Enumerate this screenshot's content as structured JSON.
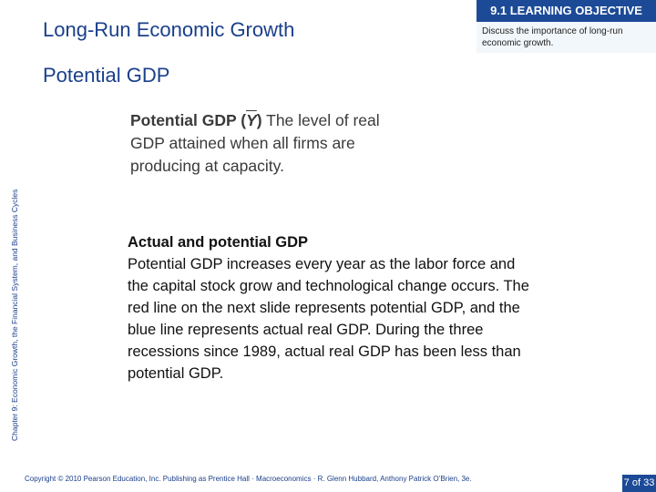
{
  "header": {
    "title": "Long-Run Economic Growth",
    "objective_heading": "9.1 LEARNING OBJECTIVE",
    "objective_text": "Discuss the importance of long-run economic growth."
  },
  "slide": {
    "subtitle": "Potential GDP",
    "side_caption": "Chapter 9: Economic Growth, the Financial System, and Business Cycles",
    "definition": {
      "term": "Potential GDP (",
      "symbol": "Y",
      "term_close": ")",
      "text": " The level of real GDP attained when all firms are producing at capacity."
    },
    "body": {
      "heading": "Actual and potential GDP",
      "paragraph": "Potential GDP increases every year as the labor force and the capital stock grow and technological change occurs. The red line on the next slide represents potential GDP, and the blue line represents actual real GDP. During the three recessions since 1989, actual real GDP has been less than potential GDP."
    }
  },
  "footer": {
    "copyright": "Copyright © 2010 Pearson Education, Inc. Publishing as Prentice Hall · Macroeconomics · R. Glenn Hubbard, Anthony Patrick O’Brien, 3e.",
    "page": "7 of 33"
  },
  "colors": {
    "accent": "#1c4a97",
    "title_text": "#1a3f8a",
    "objective_background": "#f2f7fb"
  }
}
